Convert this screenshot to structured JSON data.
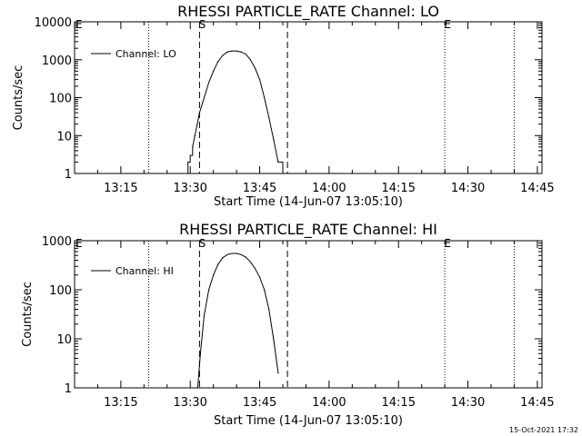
{
  "footer_timestamp": "15-Oct-2021 17:32",
  "colors": {
    "background": "#ffffff",
    "foreground": "#000000"
  },
  "chart_data": [
    {
      "type": "line",
      "title": "RHESSI PARTICLE_RATE Channel: LO",
      "xlabel": "Start Time (14-Jun-07 13:05:10)",
      "ylabel": "Counts/sec",
      "y_scale": "log",
      "xlim": [
        "13:05",
        "14:46"
      ],
      "ylim": [
        1,
        10000
      ],
      "x_ticks": [
        "13:15",
        "13:30",
        "13:45",
        "14:00",
        "14:15",
        "14:30",
        "14:45"
      ],
      "y_ticks": [
        "1",
        "10",
        "100",
        "1000",
        "10000"
      ],
      "legend": {
        "label": "Channel: LO",
        "position": "top-left"
      },
      "markers": [
        {
          "label": "S",
          "time": "13:32",
          "style": "dashed"
        },
        {
          "label": "E",
          "time": "14:25",
          "style": "dotted"
        }
      ],
      "unlabeled_lines": [
        {
          "time": "13:21",
          "style": "dotted"
        },
        {
          "time": "13:51",
          "style": "dashed"
        },
        {
          "time": "14:40",
          "style": "dotted"
        }
      ],
      "series": [
        {
          "name": "Channel: LO",
          "step": true,
          "x": [
            "13:27.5",
            "13:29.5",
            "13:30",
            "13:30.5",
            "13:31",
            "13:31.5",
            "13:32",
            "13:33",
            "13:34",
            "13:35",
            "13:36",
            "13:37",
            "13:38",
            "13:39",
            "13:40",
            "13:41",
            "13:42",
            "13:43",
            "13:44",
            "13:45",
            "13:46",
            "13:47",
            "13:48",
            "13:49",
            "13:50"
          ],
          "values": [
            1,
            2,
            3,
            5,
            10,
            20,
            40,
            100,
            250,
            500,
            900,
            1300,
            1600,
            1700,
            1700,
            1600,
            1400,
            1000,
            600,
            300,
            100,
            30,
            8,
            2,
            1
          ]
        }
      ]
    },
    {
      "type": "line",
      "title": "RHESSI PARTICLE_RATE Channel: HI",
      "xlabel": "Start Time (14-Jun-07 13:05:10)",
      "ylabel": "Counts/sec",
      "y_scale": "log",
      "xlim": [
        "13:05",
        "14:46"
      ],
      "ylim": [
        1,
        1000
      ],
      "x_ticks": [
        "13:15",
        "13:30",
        "13:45",
        "14:00",
        "14:15",
        "14:30",
        "14:45"
      ],
      "y_ticks": [
        "1",
        "10",
        "100",
        "1000"
      ],
      "legend": {
        "label": "Channel: HI",
        "position": "top-left"
      },
      "markers": [
        {
          "label": "S",
          "time": "13:32",
          "style": "dashed"
        },
        {
          "label": "E",
          "time": "14:25",
          "style": "dotted"
        }
      ],
      "unlabeled_lines": [
        {
          "time": "13:21",
          "style": "dotted"
        },
        {
          "time": "13:51",
          "style": "dashed"
        },
        {
          "time": "14:40",
          "style": "dotted"
        }
      ],
      "series": [
        {
          "name": "Channel: HI",
          "step": false,
          "x": [
            "13:31.6",
            "13:32.2",
            "13:33",
            "13:34",
            "13:35",
            "13:36",
            "13:37",
            "13:38",
            "13:39",
            "13:40",
            "13:41",
            "13:42",
            "13:43",
            "13:44",
            "13:45",
            "13:46",
            "13:47",
            "13:48",
            "13:49"
          ],
          "values": [
            1,
            5,
            30,
            100,
            200,
            330,
            450,
            520,
            550,
            550,
            520,
            460,
            370,
            270,
            180,
            100,
            40,
            10,
            2
          ]
        }
      ]
    }
  ]
}
